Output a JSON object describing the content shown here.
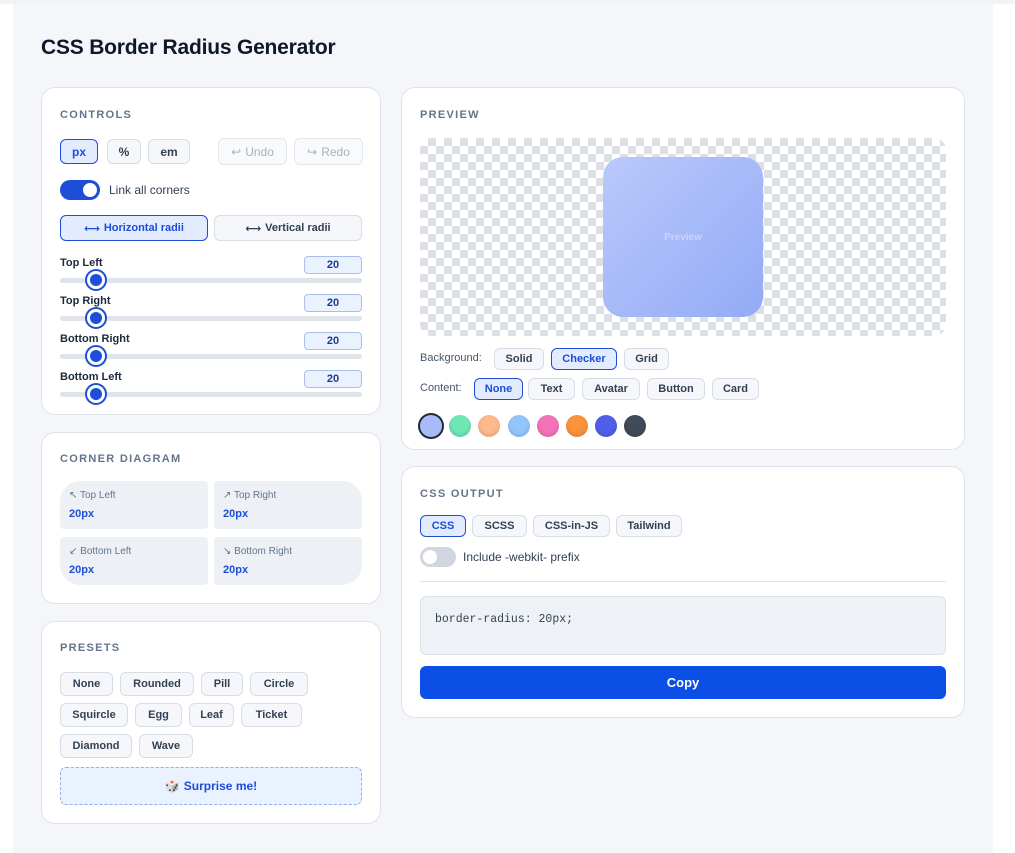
{
  "page_title": "CSS Border Radius Generator",
  "controls": {
    "section_title": "CONTROLS",
    "units": [
      {
        "label": "px",
        "active": true
      },
      {
        "label": "%",
        "active": false
      },
      {
        "label": "em",
        "active": false
      }
    ],
    "undo_label": "Undo",
    "redo_label": "Redo",
    "link_corners_label": "Link all corners",
    "link_corners_on": true,
    "radii_modes": [
      {
        "label": "Horizontal radii",
        "active": true
      },
      {
        "label": "Vertical radii",
        "active": false
      }
    ],
    "sliders": [
      {
        "label": "Top Left",
        "value": "20"
      },
      {
        "label": "Top Right",
        "value": "20"
      },
      {
        "label": "Bottom Right",
        "value": "20"
      },
      {
        "label": "Bottom Left",
        "value": "20"
      }
    ]
  },
  "diagram": {
    "section_title": "CORNER DIAGRAM",
    "corners": [
      {
        "arrow": "↖",
        "label": "Top Left",
        "value": "20px"
      },
      {
        "arrow": "↗",
        "label": "Top Right",
        "value": "20px"
      },
      {
        "arrow": "↙",
        "label": "Bottom Left",
        "value": "20px"
      },
      {
        "arrow": "↘",
        "label": "Bottom Right",
        "value": "20px"
      }
    ]
  },
  "presets": {
    "section_title": "PRESETS",
    "items": [
      "None",
      "Rounded",
      "Pill",
      "Circle",
      "Squircle",
      "Egg",
      "Leaf",
      "Ticket",
      "Diamond",
      "Wave"
    ],
    "surprise_icon": "🎲",
    "surprise_label": "Surprise me!"
  },
  "preview": {
    "section_title": "PREVIEW",
    "box_text": "Preview",
    "background_label": "Background:",
    "backgrounds": [
      {
        "label": "Solid",
        "active": false
      },
      {
        "label": "Checker",
        "active": true
      },
      {
        "label": "Grid",
        "active": false
      }
    ],
    "content_label": "Content:",
    "contents": [
      {
        "label": "None",
        "active": true
      },
      {
        "label": "Text",
        "active": false
      },
      {
        "label": "Avatar",
        "active": false
      },
      {
        "label": "Button",
        "active": false
      },
      {
        "label": "Card",
        "active": false
      }
    ],
    "swatches": [
      {
        "name": "periwinkle",
        "color": "#a9bbf6",
        "selected": true
      },
      {
        "name": "mint",
        "color": "#6ee7b7",
        "selected": false
      },
      {
        "name": "peach",
        "color": "#fdba8c",
        "selected": false
      },
      {
        "name": "sky",
        "color": "#93c5fd",
        "selected": false
      },
      {
        "name": "pink",
        "color": "#f472b6",
        "selected": false
      },
      {
        "name": "orange",
        "color": "#fb923c",
        "selected": false
      },
      {
        "name": "indigo",
        "color": "#4f5fe8",
        "selected": false
      },
      {
        "name": "slate",
        "color": "#3f4b59",
        "selected": false
      }
    ]
  },
  "output": {
    "section_title": "CSS OUTPUT",
    "formats": [
      {
        "label": "CSS",
        "active": true
      },
      {
        "label": "SCSS",
        "active": false
      },
      {
        "label": "CSS-in-JS",
        "active": false
      },
      {
        "label": "Tailwind",
        "active": false
      }
    ],
    "webkit_label": "Include -webkit- prefix",
    "webkit_on": false,
    "code": "border-radius: 20px;",
    "copy_label": "Copy"
  },
  "colors": {
    "accent": "#1d4ed8",
    "copy_button": "#0b4fe6"
  }
}
